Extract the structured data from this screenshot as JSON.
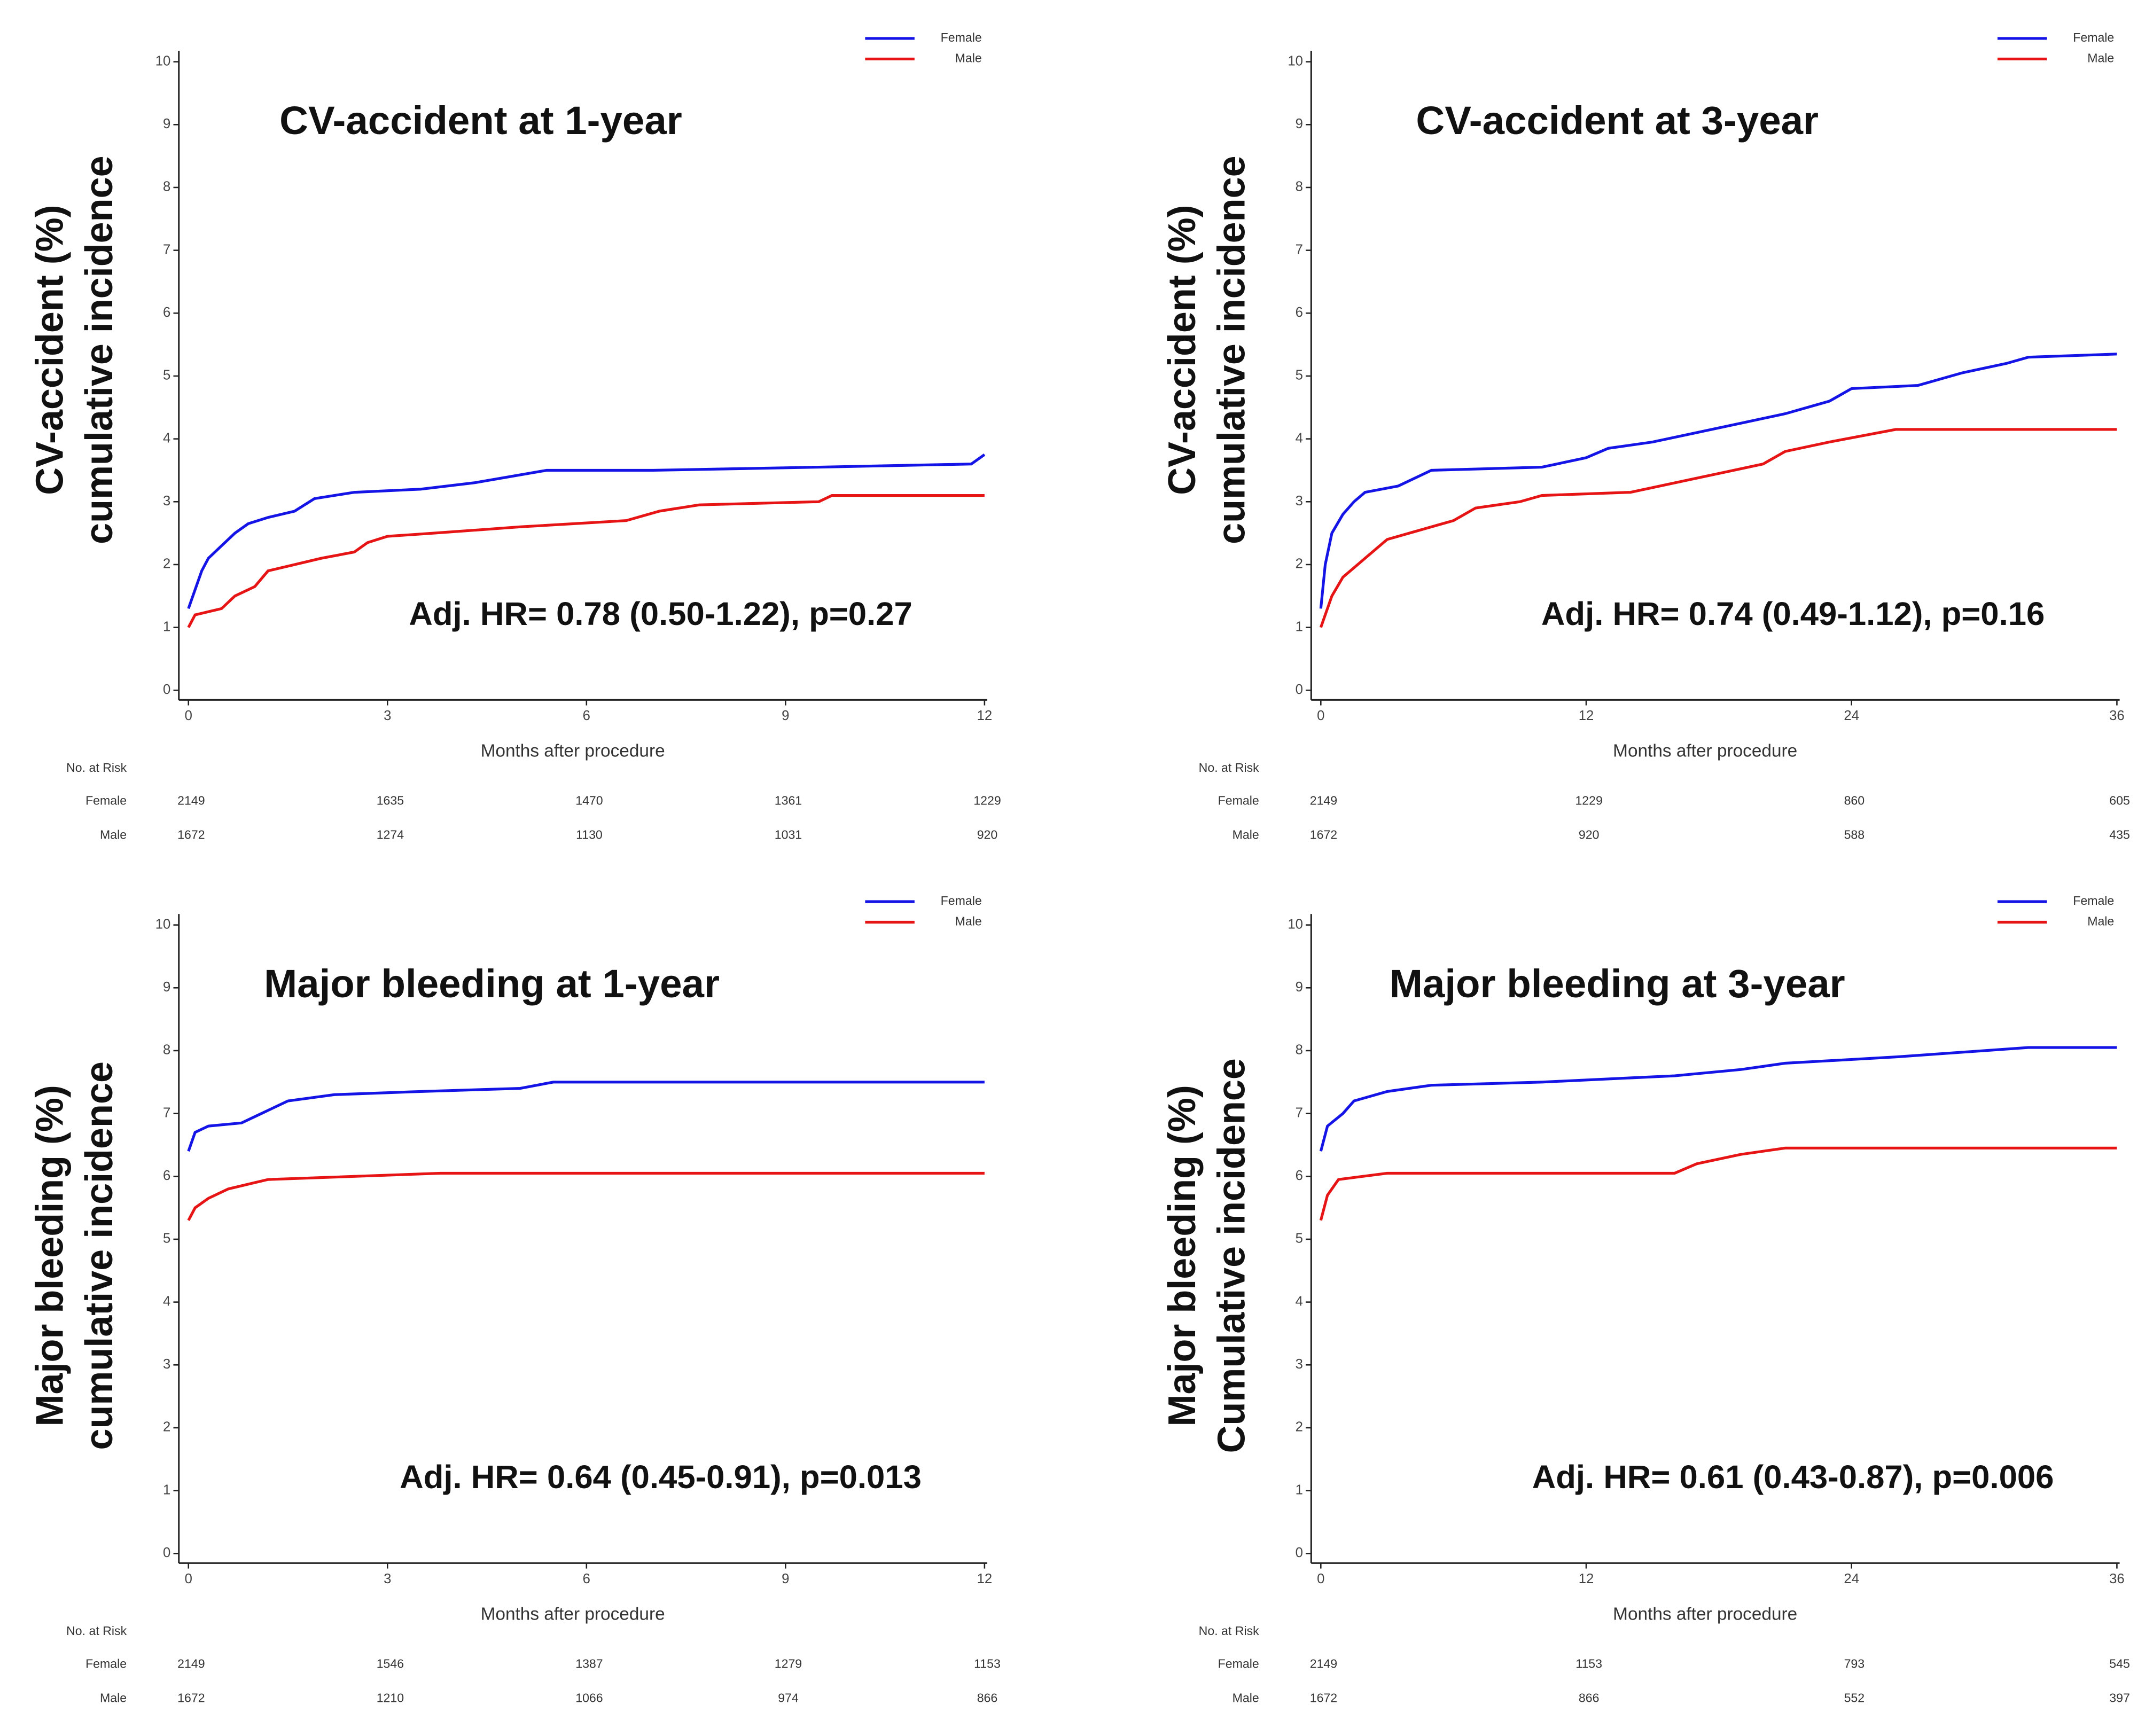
{
  "chart_data": [
    {
      "type": "line",
      "title": "CV-accident at 1-year",
      "y_label": [
        "CV-accident (%)",
        "cumulative incidence"
      ],
      "x_label": "Months after procedure",
      "annotation": "Adj. HR= 0.78 (0.50-1.22), p=0.27",
      "xlim": [
        0,
        12
      ],
      "xticks": [
        0,
        3,
        6,
        9,
        12
      ],
      "ylim": [
        0,
        10
      ],
      "yticks": [
        0,
        1,
        2,
        3,
        4,
        5,
        6,
        7,
        8,
        9,
        10
      ],
      "series": [
        {
          "name": "Female",
          "color": "#1414e6",
          "x": [
            0,
            0.1,
            0.2,
            0.3,
            0.5,
            0.7,
            0.9,
            1.2,
            1.6,
            1.9,
            2.5,
            3.5,
            4.3,
            5.4,
            7,
            9.5,
            11.8,
            12
          ],
          "values": [
            1.3,
            1.6,
            1.9,
            2.1,
            2.3,
            2.5,
            2.65,
            2.75,
            2.85,
            3.05,
            3.15,
            3.2,
            3.3,
            3.5,
            3.5,
            3.55,
            3.6,
            3.75
          ]
        },
        {
          "name": "Male",
          "color": "#e61414",
          "x": [
            0,
            0.1,
            0.5,
            0.7,
            1,
            1.2,
            1.6,
            2,
            2.5,
            2.7,
            3,
            3.7,
            5,
            6.6,
            7.1,
            7.7,
            9.5,
            9.7,
            12
          ],
          "values": [
            1.0,
            1.2,
            1.3,
            1.5,
            1.65,
            1.9,
            2.0,
            2.1,
            2.2,
            2.35,
            2.45,
            2.5,
            2.6,
            2.7,
            2.85,
            2.95,
            3.0,
            3.1,
            3.1
          ]
        }
      ],
      "risk_table": {
        "title": "No. at Risk",
        "rows": [
          {
            "label": "Female",
            "values": [
              "2149",
              "1635",
              "1470",
              "1361",
              "1229"
            ]
          },
          {
            "label": "Male",
            "values": [
              "1672",
              "1274",
              "1130",
              "1031",
              "920"
            ]
          }
        ]
      }
    },
    {
      "type": "line",
      "title": "CV-accident at 3-year",
      "y_label": [
        "CV-accident (%)",
        "cumulative incidence"
      ],
      "x_label": "Months after procedure",
      "annotation": "Adj. HR= 0.74 (0.49-1.12), p=0.16",
      "xlim": [
        0,
        36
      ],
      "xticks": [
        0,
        12,
        24,
        36
      ],
      "ylim": [
        0,
        10
      ],
      "yticks": [
        0,
        1,
        2,
        3,
        4,
        5,
        6,
        7,
        8,
        9,
        10
      ],
      "series": [
        {
          "name": "Female",
          "color": "#1414e6",
          "x": [
            0,
            0.2,
            0.5,
            1,
            1.5,
            2,
            3.5,
            5,
            10,
            12,
            13,
            15,
            17,
            19,
            21,
            23,
            24,
            27,
            29,
            31,
            32,
            36
          ],
          "values": [
            1.3,
            2.0,
            2.5,
            2.8,
            3.0,
            3.15,
            3.25,
            3.5,
            3.55,
            3.7,
            3.85,
            3.95,
            4.1,
            4.25,
            4.4,
            4.6,
            4.8,
            4.85,
            5.05,
            5.2,
            5.3,
            5.35
          ]
        },
        {
          "name": "Male",
          "color": "#e61414",
          "x": [
            0,
            0.5,
            1,
            2,
            3,
            4,
            6,
            7,
            9,
            10,
            14,
            16,
            18,
            20,
            21,
            23,
            26,
            36
          ],
          "values": [
            1.0,
            1.5,
            1.8,
            2.1,
            2.4,
            2.5,
            2.7,
            2.9,
            3.0,
            3.1,
            3.15,
            3.3,
            3.45,
            3.6,
            3.8,
            3.95,
            4.15,
            4.15
          ]
        }
      ],
      "risk_table": {
        "title": "No. at Risk",
        "rows": [
          {
            "label": "Female",
            "values": [
              "2149",
              "1229",
              "860",
              "605"
            ]
          },
          {
            "label": "Male",
            "values": [
              "1672",
              "920",
              "588",
              "435"
            ]
          }
        ]
      }
    },
    {
      "type": "line",
      "title": "Major bleeding at 1-year",
      "y_label": [
        "Major bleeding (%)",
        "cumulative incidence"
      ],
      "x_label": "Months after procedure",
      "annotation": "Adj. HR= 0.64 (0.45-0.91), p=0.013",
      "xlim": [
        0,
        12
      ],
      "xticks": [
        0,
        3,
        6,
        9,
        12
      ],
      "ylim": [
        0,
        10
      ],
      "yticks": [
        0,
        1,
        2,
        3,
        4,
        5,
        6,
        7,
        8,
        9,
        10
      ],
      "series": [
        {
          "name": "Female",
          "color": "#1414e6",
          "x": [
            0,
            0.1,
            0.3,
            0.8,
            1.0,
            1.3,
            1.5,
            2.2,
            3.5,
            5,
            5.5,
            12
          ],
          "values": [
            6.4,
            6.7,
            6.8,
            6.85,
            6.95,
            7.1,
            7.2,
            7.3,
            7.35,
            7.4,
            7.5,
            7.5
          ]
        },
        {
          "name": "Male",
          "color": "#e61414",
          "x": [
            0,
            0.1,
            0.3,
            0.6,
            1,
            1.2,
            3.8,
            12
          ],
          "values": [
            5.3,
            5.5,
            5.65,
            5.8,
            5.9,
            5.95,
            6.05,
            6.05
          ]
        }
      ],
      "risk_table": {
        "title": "No. at Risk",
        "rows": [
          {
            "label": "Female",
            "values": [
              "2149",
              "1546",
              "1387",
              "1279",
              "1153"
            ]
          },
          {
            "label": "Male",
            "values": [
              "1672",
              "1210",
              "1066",
              "974",
              "866"
            ]
          }
        ]
      }
    },
    {
      "type": "line",
      "title": "Major bleeding at 3-year",
      "y_label": [
        "Major bleeding (%)",
        "Cumulative incidence"
      ],
      "x_label": "Months after procedure",
      "annotation": "Adj. HR= 0.61 (0.43-0.87), p=0.006",
      "xlim": [
        0,
        36
      ],
      "xticks": [
        0,
        12,
        24,
        36
      ],
      "ylim": [
        0,
        10
      ],
      "yticks": [
        0,
        1,
        2,
        3,
        4,
        5,
        6,
        7,
        8,
        9,
        10
      ],
      "series": [
        {
          "name": "Female",
          "color": "#1414e6",
          "x": [
            0,
            0.3,
            1,
            1.5,
            3,
            5,
            10,
            16,
            19,
            21,
            26,
            32,
            36
          ],
          "values": [
            6.4,
            6.8,
            7.0,
            7.2,
            7.35,
            7.45,
            7.5,
            7.6,
            7.7,
            7.8,
            7.9,
            8.05,
            8.05
          ]
        },
        {
          "name": "Male",
          "color": "#e61414",
          "x": [
            0,
            0.3,
            0.8,
            3,
            16,
            17,
            19,
            21,
            36
          ],
          "values": [
            5.3,
            5.7,
            5.95,
            6.05,
            6.05,
            6.2,
            6.35,
            6.45,
            6.45
          ]
        }
      ],
      "risk_table": {
        "title": "No. at Risk",
        "rows": [
          {
            "label": "Female",
            "values": [
              "2149",
              "1153",
              "793",
              "545"
            ]
          },
          {
            "label": "Male",
            "values": [
              "1672",
              "866",
              "552",
              "397"
            ]
          }
        ]
      }
    }
  ]
}
